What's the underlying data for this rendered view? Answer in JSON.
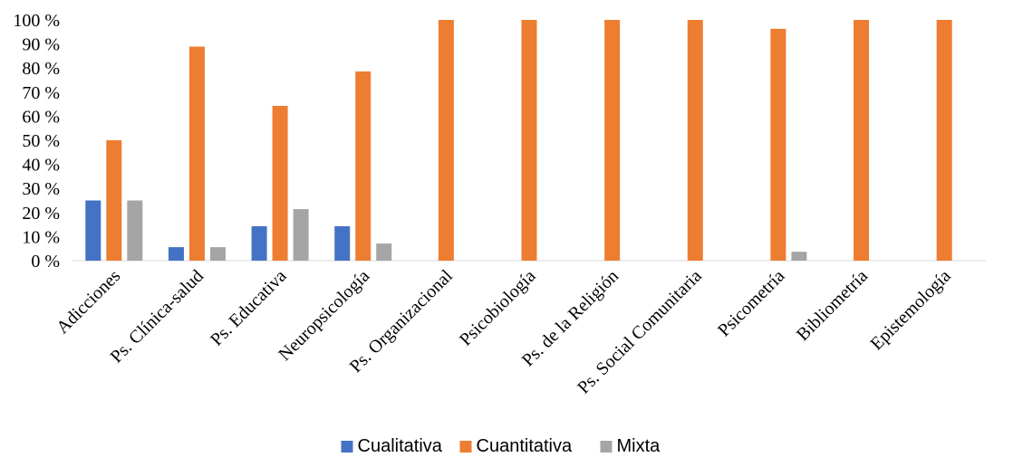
{
  "chart_data": {
    "type": "bar",
    "categories": [
      "Adicciones",
      "Ps. Clínica-salud",
      "Ps. Educativa",
      "Neuropsicología",
      "Ps. Organizacional",
      "Psicobiología",
      "Ps. de la Religión",
      "Ps. Social Comunitaria",
      "Psicometría",
      "Bibliometría",
      "Epistemología"
    ],
    "series": [
      {
        "name": "Cualitativa",
        "color": "#4472c4",
        "values": [
          25,
          5.6,
          14.3,
          14.3,
          0,
          0,
          0,
          0,
          0,
          0,
          0
        ]
      },
      {
        "name": "Cuantitativa",
        "color": "#ed7d31",
        "values": [
          50,
          88.9,
          64.3,
          78.6,
          100,
          100,
          100,
          100,
          96.3,
          100,
          100
        ]
      },
      {
        "name": "Mixta",
        "color": "#a5a5a5",
        "values": [
          25,
          5.6,
          21.4,
          7.1,
          0,
          0,
          0,
          0,
          3.7,
          0,
          0
        ]
      }
    ],
    "ylim": [
      0,
      100
    ],
    "yticks": [
      "0 %",
      "10 %",
      "20 %",
      "30 %",
      "40 %",
      "50 %",
      "60 %",
      "70 %",
      "80 %",
      "90 %",
      "100 %"
    ],
    "grid": false,
    "legend": "bottom-center"
  }
}
